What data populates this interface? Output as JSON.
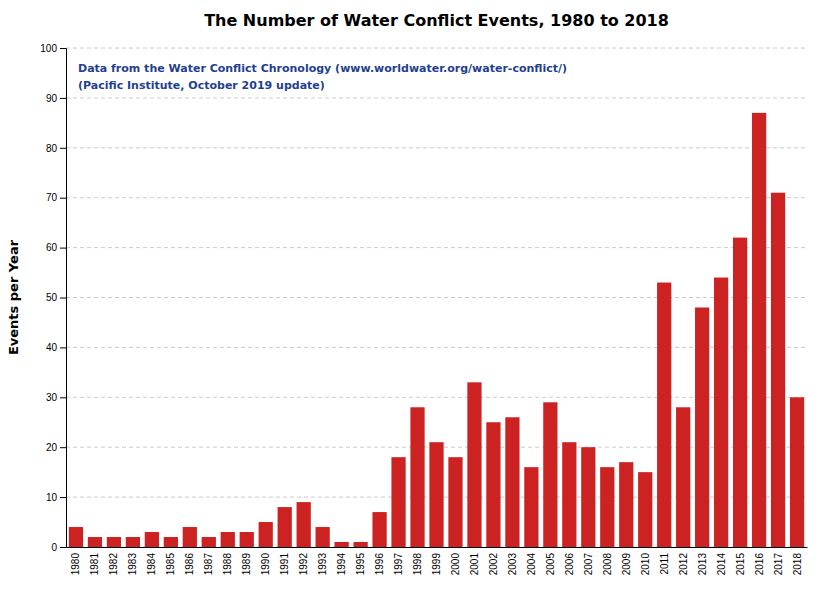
{
  "chart_data": {
    "type": "bar",
    "title": "The Number of Water Conflict Events, 1980 to 2018",
    "y_label": "Events per Year",
    "annotations": [
      "Data from the Water Conflict Chronology (www.worldwater.org/water-conflict/)",
      "(Pacific Institute, October 2019 update)"
    ],
    "categories": [
      "1980",
      "1981",
      "1982",
      "1983",
      "1984",
      "1985",
      "1986",
      "1987",
      "1988",
      "1989",
      "1990",
      "1991",
      "1992",
      "1993",
      "1994",
      "1995",
      "1996",
      "1997",
      "1998",
      "1999",
      "2000",
      "2001",
      "2002",
      "2003",
      "2004",
      "2005",
      "2006",
      "2007",
      "2008",
      "2009",
      "2010",
      "2011",
      "2012",
      "2013",
      "2014",
      "2015",
      "2016",
      "2017",
      "2018"
    ],
    "values": [
      4,
      2,
      2,
      2,
      3,
      2,
      4,
      2,
      3,
      3,
      5,
      8,
      9,
      4,
      1,
      1,
      7,
      18,
      28,
      21,
      18,
      33,
      25,
      26,
      16,
      29,
      21,
      20,
      16,
      17,
      15,
      53,
      28,
      48,
      54,
      62,
      87,
      71,
      30
    ],
    "color": "#cc2222",
    "ylim": [
      0,
      100
    ],
    "yticks": [
      0,
      10,
      20,
      30,
      40,
      50,
      60,
      70,
      80,
      90,
      100
    ],
    "grid": true
  }
}
